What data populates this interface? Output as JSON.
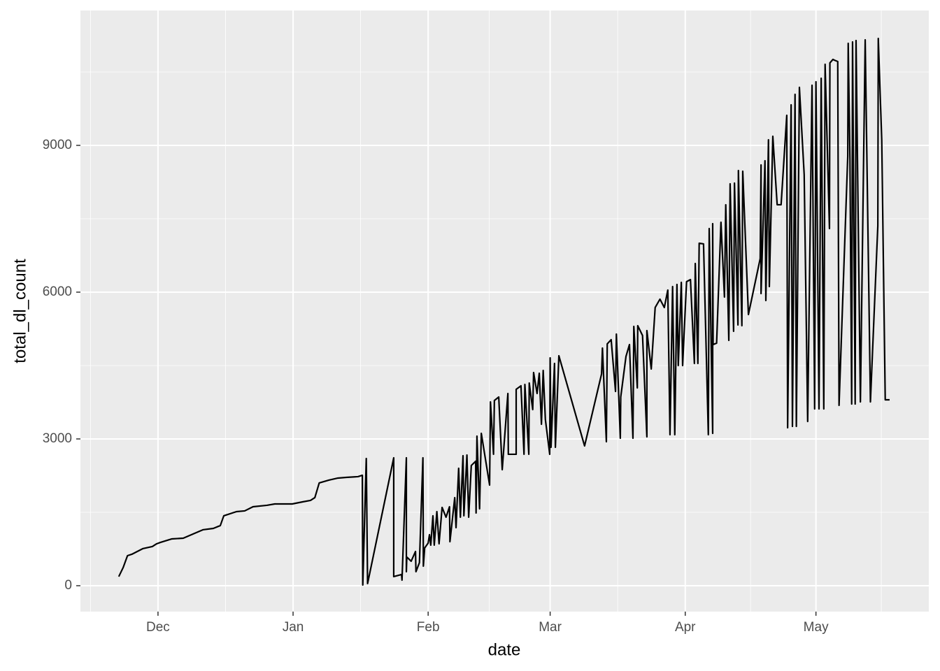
{
  "chart_data": {
    "type": "line",
    "xlabel": "date",
    "ylabel": "total_dl_count",
    "color": "#000000",
    "grid": true,
    "xlim": [
      -17.8,
      176.9
    ],
    "xticks": [
      {
        "value": 0,
        "label": "Dec"
      },
      {
        "value": 31,
        "label": "Jan"
      },
      {
        "value": 62,
        "label": "Feb"
      },
      {
        "value": 90,
        "label": "Mar"
      },
      {
        "value": 121,
        "label": "Apr"
      },
      {
        "value": 151,
        "label": "May"
      }
    ],
    "ylim": [
      -529,
      11757
    ],
    "yticks": [
      0,
      3000,
      6000,
      9000
    ],
    "x": [
      -9,
      -8,
      -7,
      -6,
      -3.5,
      -1.3,
      -0.3,
      0.6,
      3.2,
      5.8,
      10.3,
      12.7,
      14.3,
      15.1,
      18,
      19.9,
      21.8,
      25,
      26.8,
      30.8,
      33.2,
      35,
      36,
      37,
      39.2,
      41.3,
      43.2,
      45.9,
      46.9,
      47,
      47.8,
      48.1,
      54.1,
      54.1,
      55.9,
      56,
      57,
      57,
      57.1,
      58.1,
      59.1,
      59.2,
      60,
      60.8,
      60.9,
      61.2,
      62,
      62.3,
      62.6,
      63.1,
      63.4,
      64,
      64.5,
      65.2,
      66.1,
      66.9,
      67,
      68.1,
      68.4,
      69,
      69.4,
      70,
      70.2,
      70.9,
      71.3,
      71.9,
      72.9,
      73,
      73.2,
      73.8,
      74.2,
      76.1,
      76.3,
      77,
      77.2,
      78.2,
      79,
      80.3,
      80.4,
      82.2,
      82.2,
      83.3,
      84,
      84.2,
      85.1,
      85.2,
      86,
      86.2,
      87,
      87.5,
      88,
      88.4,
      88.9,
      89.9,
      90,
      90.2,
      91,
      91.2,
      92,
      97.9,
      101.8,
      102,
      102.9,
      103.1,
      104,
      105,
      105.2,
      106.1,
      106.2,
      107.4,
      108.2,
      109,
      109.2,
      110,
      110.1,
      111.2,
      112.2,
      112.2,
      113.2,
      114.1,
      115.2,
      116.2,
      117,
      117.5,
      118.1,
      118.6,
      119.1,
      119.4,
      120.1,
      120.4,
      121.3,
      122.2,
      123.1,
      123.3,
      123.9,
      124.2,
      125.2,
      126.3,
      126.5,
      127.3,
      127.3,
      127.4,
      128.2,
      129.2,
      130,
      130.3,
      131,
      131.3,
      132.1,
      132.3,
      133.1,
      133.2,
      134,
      134.2,
      135.5,
      138.2,
      138.4,
      138.4,
      139.3,
      139.5,
      140.1,
      140.3,
      141.1,
      142.1,
      143,
      144.3,
      144.5,
      145.3,
      145.6,
      146.2,
      146.5,
      147.2,
      148.3,
      149.1,
      150.1,
      150.7,
      151,
      151.7,
      152.2,
      152.8,
      153.1,
      154.1,
      154.2,
      154.9,
      155.2,
      156,
      156.3,
      158.3,
      158.4,
      158.8,
      159.2,
      159.4,
      160,
      160.2,
      161.2,
      162.3,
      163.5,
      165.2,
      165.3,
      166.1,
      166.9,
      167.9
    ],
    "values": [
      186,
      370,
      614,
      643,
      757,
      800,
      857,
      886,
      957,
      971,
      1143,
      1171,
      1229,
      1429,
      1514,
      1529,
      1614,
      1643,
      1671,
      1671,
      1714,
      1743,
      1800,
      2100,
      2157,
      2200,
      2214,
      2229,
      2257,
      14,
      2600,
      43,
      2614,
      186,
      229,
      114,
      2614,
      286,
      586,
      500,
      700,
      286,
      471,
      2614,
      400,
      771,
      871,
      1043,
      829,
      1429,
      829,
      1514,
      857,
      1600,
      1400,
      1614,
      900,
      1800,
      1186,
      2400,
      1400,
      2657,
      1429,
      2671,
      1400,
      2457,
      2543,
      1486,
      3057,
      1571,
      3114,
      2057,
      3757,
      2686,
      3786,
      3857,
      2371,
      3929,
      2686,
      2686,
      4014,
      4086,
      2686,
      4114,
      2686,
      4143,
      3600,
      4357,
      3929,
      4343,
      3300,
      4400,
      3400,
      2686,
      4657,
      2829,
      4543,
      2829,
      4700,
      2857,
      4329,
      4857,
      2943,
      4943,
      5029,
      3971,
      5143,
      3014,
      3857,
      4686,
      4929,
      3014,
      5300,
      4043,
      5314,
      5114,
      3043,
      5214,
      4429,
      5686,
      5857,
      5686,
      6043,
      3086,
      6114,
      3086,
      6157,
      4500,
      6200,
      4500,
      6214,
      6257,
      4543,
      6586,
      4543,
      7000,
      6986,
      3086,
      7300,
      3114,
      7400,
      4929,
      4957,
      7429,
      5900,
      7786,
      5014,
      8214,
      5200,
      8229,
      5329,
      8486,
      5314,
      8471,
      5543,
      6686,
      8600,
      5971,
      8686,
      5829,
      9114,
      6114,
      9186,
      7786,
      7786,
      9614,
      3229,
      9829,
      3257,
      10043,
      3257,
      10186,
      8400,
      3357,
      10229,
      3614,
      10300,
      3614,
      10371,
      3614,
      10657,
      7300,
      10686,
      10757,
      10743,
      10714,
      3686,
      8786,
      11086,
      8729,
      3714,
      11114,
      3714,
      11143,
      3757,
      11157,
      3757,
      7357,
      11186,
      9114,
      3800,
      3800
    ]
  }
}
